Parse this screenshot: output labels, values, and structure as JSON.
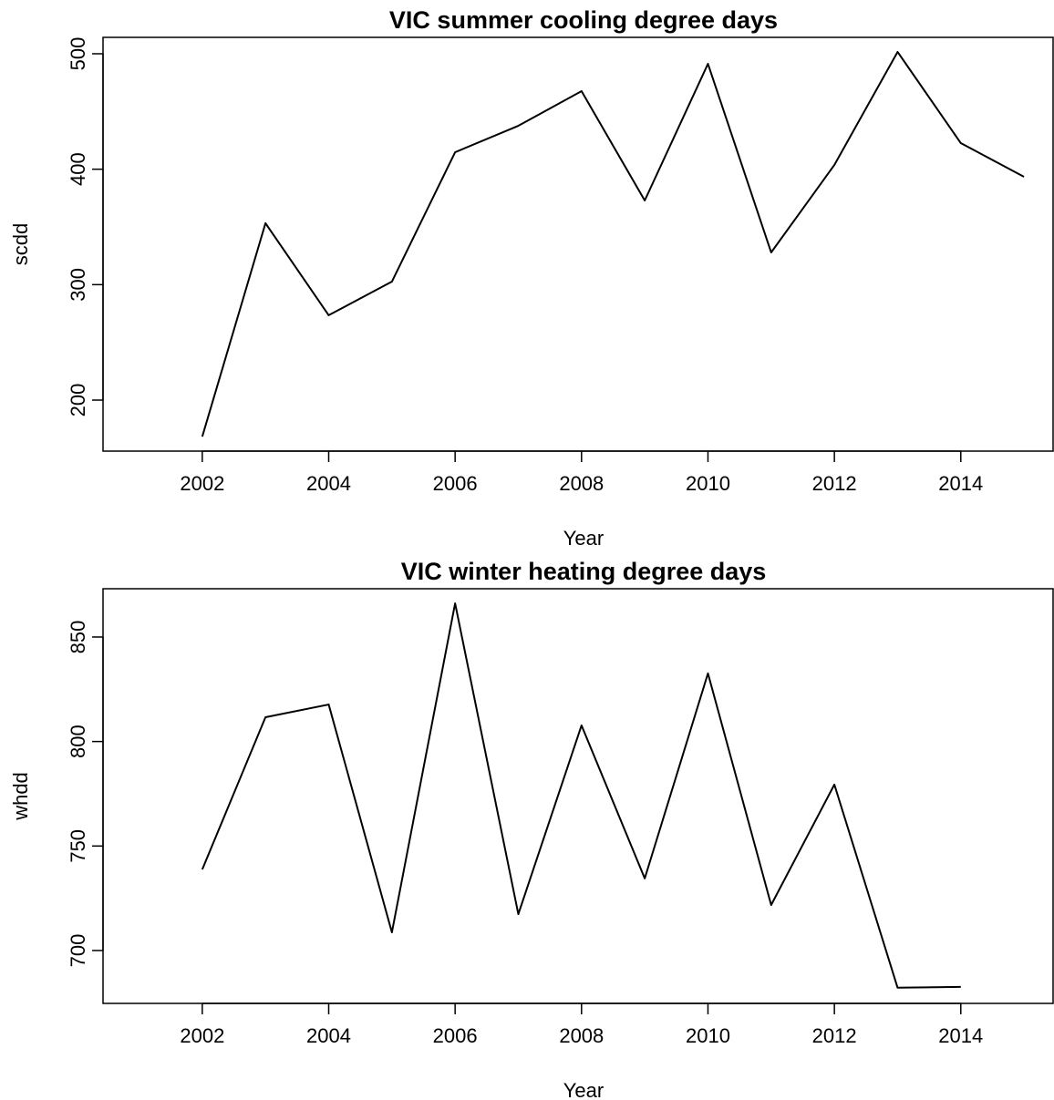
{
  "chart_data": [
    {
      "type": "line",
      "title": "VIC summer cooling degree days",
      "xlabel": "Year",
      "ylabel": "scdd",
      "x": [
        2002,
        2003,
        2004,
        2005,
        2006,
        2007,
        2008,
        2009,
        2010,
        2011,
        2012,
        2013,
        2014,
        2015
      ],
      "values": [
        168.4,
        353.2,
        273.5,
        302.6,
        414.7,
        437.6,
        467.6,
        372.9,
        491.3,
        327.9,
        403.7,
        501.6,
        422.6,
        393.4
      ],
      "color": "#000000",
      "xlim": [
        2000.43,
        2015.46
      ],
      "xticks": [
        2002,
        2004,
        2006,
        2008,
        2010,
        2012,
        2014
      ],
      "ylim": [
        155.8,
        514.2
      ],
      "yticks": [
        200,
        300,
        400,
        500
      ]
    },
    {
      "type": "line",
      "title": "VIC winter heating degree days",
      "xlabel": "Year",
      "ylabel": "whdd",
      "x": [
        2002,
        2003,
        2004,
        2005,
        2006,
        2007,
        2008,
        2009,
        2010,
        2011,
        2012,
        2013,
        2014
      ],
      "values": [
        738.8,
        811.6,
        817.7,
        708.7,
        866.1,
        717.4,
        807.7,
        734.5,
        832.6,
        721.8,
        779.4,
        682.2,
        682.6
      ],
      "color": "#000000",
      "xlim": [
        2000.43,
        2015.46
      ],
      "xticks": [
        2002,
        2004,
        2006,
        2008,
        2010,
        2012,
        2014
      ],
      "ylim": [
        674.7,
        873.1
      ],
      "yticks": [
        700,
        750,
        800,
        850
      ]
    }
  ]
}
